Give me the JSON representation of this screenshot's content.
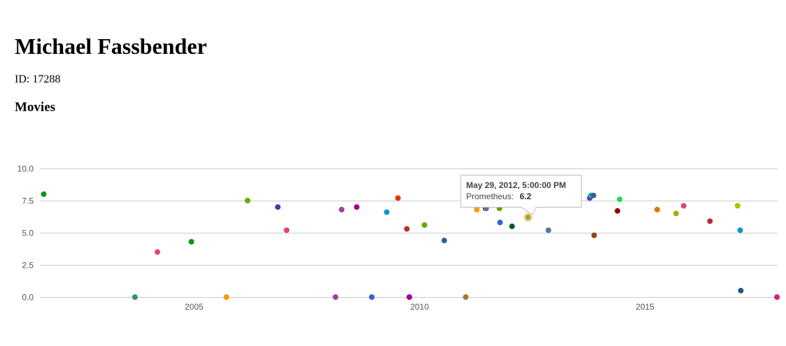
{
  "actor": {
    "name": "Michael Fassbender",
    "id_label": "ID: 17288"
  },
  "section_title": "Movies",
  "chart_data": {
    "type": "scatter",
    "xlabel": "",
    "ylabel": "",
    "x_axis": {
      "kind": "date",
      "range": [
        "2001-08-01",
        "2017-12-10"
      ],
      "ticks": [
        "2005",
        "2010",
        "2015"
      ]
    },
    "y_axis": {
      "range": [
        0,
        10
      ],
      "ticks": [
        "0.0",
        "2.5",
        "5.0",
        "7.5",
        "10.0"
      ]
    },
    "grid": true,
    "legend": "none",
    "points": [
      {
        "x": "2001-09-01",
        "y": 8.0,
        "color": "#109618"
      },
      {
        "x": "2003-09-10",
        "y": 0.0,
        "color": "#329262"
      },
      {
        "x": "2004-03-10",
        "y": 3.5,
        "color": "#dd4477"
      },
      {
        "x": "2004-12-10",
        "y": 4.3,
        "color": "#109618"
      },
      {
        "x": "2005-09-20",
        "y": 0.0,
        "color": "#ff9900"
      },
      {
        "x": "2006-03-10",
        "y": 7.5,
        "color": "#66aa00"
      },
      {
        "x": "2006-11-10",
        "y": 7.0,
        "color": "#3b3eac"
      },
      {
        "x": "2007-01-20",
        "y": 5.2,
        "color": "#dd4477"
      },
      {
        "x": "2008-02-20",
        "y": 0.0,
        "color": "#994499"
      },
      {
        "x": "2008-04-10",
        "y": 6.8,
        "color": "#994499"
      },
      {
        "x": "2008-08-10",
        "y": 7.0,
        "color": "#990099"
      },
      {
        "x": "2008-12-10",
        "y": 0.0,
        "color": "#3366cc"
      },
      {
        "x": "2009-04-10",
        "y": 6.6,
        "color": "#0099c6"
      },
      {
        "x": "2009-07-10",
        "y": 7.7,
        "color": "#dc3912"
      },
      {
        "x": "2009-09-20",
        "y": 5.3,
        "color": "#b82e2e"
      },
      {
        "x": "2009-10-10",
        "y": 0.0,
        "color": "#990099"
      },
      {
        "x": "2010-02-10",
        "y": 5.6,
        "color": "#66aa00"
      },
      {
        "x": "2010-07-20",
        "y": 4.4,
        "color": "#316395"
      },
      {
        "x": "2011-01-10",
        "y": 0.0,
        "color": "#aa7722"
      },
      {
        "x": "2011-04-10",
        "y": 6.8,
        "color": "#ff9900"
      },
      {
        "x": "2011-06-20",
        "y": 6.9,
        "color": "#8b0707"
      },
      {
        "x": "2011-06-25",
        "y": 6.9,
        "color": "#5574a6"
      },
      {
        "x": "2011-10-10",
        "y": 6.9,
        "color": "#669900"
      },
      {
        "x": "2011-10-15",
        "y": 5.8,
        "color": "#3366cc"
      },
      {
        "x": "2012-01-20",
        "y": 5.5,
        "color": "#0c5922"
      },
      {
        "x": "2012-05-29",
        "y": 6.2,
        "color": "#b3a12b",
        "label": "Prometheus"
      },
      {
        "x": "2012-11-10",
        "y": 5.2,
        "color": "#5574a6"
      },
      {
        "x": "2013-10-10",
        "y": 7.7,
        "color": "#6633cc"
      },
      {
        "x": "2013-10-20",
        "y": 7.9,
        "color": "#22aa99"
      },
      {
        "x": "2013-11-10",
        "y": 7.9,
        "color": "#316395"
      },
      {
        "x": "2013-11-15",
        "y": 4.8,
        "color": "#8b4513"
      },
      {
        "x": "2014-05-23",
        "y": 6.7,
        "color": "#8b0707"
      },
      {
        "x": "2014-06-10",
        "y": 7.6,
        "color": "#22dd44"
      },
      {
        "x": "2015-04-10",
        "y": 6.8,
        "color": "#e67300"
      },
      {
        "x": "2015-09-10",
        "y": 6.5,
        "color": "#aaaa11"
      },
      {
        "x": "2015-11-10",
        "y": 7.1,
        "color": "#dd4477"
      },
      {
        "x": "2016-06-10",
        "y": 5.9,
        "color": "#b82e2e"
      },
      {
        "x": "2017-01-20",
        "y": 7.1,
        "color": "#99cc00"
      },
      {
        "x": "2017-02-10",
        "y": 5.2,
        "color": "#0099c6"
      },
      {
        "x": "2017-02-15",
        "y": 0.5,
        "color": "#22558e"
      },
      {
        "x": "2017-12-05",
        "y": 0.0,
        "color": "#cc2277"
      }
    ],
    "tooltip": {
      "date": "May 29, 2012, 5:00:00 PM",
      "series": "Prometheus:",
      "value": "6.2"
    }
  }
}
